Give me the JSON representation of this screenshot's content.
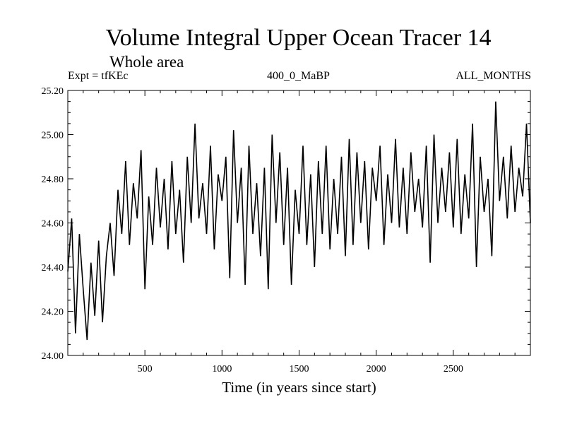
{
  "chart_data": {
    "type": "line",
    "title": "Volume Integral Upper Ocean Tracer 14",
    "subtitle": "Whole area",
    "annotations": {
      "left": "Expt = tfKEc",
      "center": "400_0_MaBP",
      "right": "ALL_MONTHS"
    },
    "xlabel": "Time (in years since start)",
    "ylabel": "",
    "xlim": [
      0,
      3000
    ],
    "ylim": [
      24.0,
      25.2
    ],
    "xticks": [
      500,
      1000,
      1500,
      2000,
      2500
    ],
    "xtick_labels": [
      "500",
      "1000",
      "1500",
      "2000",
      "2500"
    ],
    "yticks": [
      24.0,
      24.2,
      24.4,
      24.6,
      24.8,
      25.0,
      25.2
    ],
    "ytick_labels": [
      "24.00",
      "24.20",
      "24.40",
      "24.60",
      "24.80",
      "25.00",
      "25.20"
    ],
    "grid": false,
    "legend": "none",
    "line_color": "#000000",
    "series": [
      {
        "x": [
          0,
          25,
          50,
          75,
          100,
          125,
          150,
          175,
          200,
          225,
          250,
          275,
          300,
          325,
          350,
          375,
          400,
          425,
          450,
          475,
          500,
          525,
          550,
          575,
          600,
          625,
          650,
          675,
          700,
          725,
          750,
          775,
          800,
          825,
          850,
          875,
          900,
          925,
          950,
          975,
          1000,
          1025,
          1050,
          1075,
          1100,
          1125,
          1150,
          1175,
          1200,
          1225,
          1250,
          1275,
          1300,
          1325,
          1350,
          1375,
          1400,
          1425,
          1450,
          1475,
          1500,
          1525,
          1550,
          1575,
          1600,
          1625,
          1650,
          1675,
          1700,
          1725,
          1750,
          1775,
          1800,
          1825,
          1850,
          1875,
          1900,
          1925,
          1950,
          1975,
          2000,
          2025,
          2050,
          2075,
          2100,
          2125,
          2150,
          2175,
          2200,
          2225,
          2250,
          2275,
          2300,
          2325,
          2350,
          2375,
          2400,
          2425,
          2450,
          2475,
          2500,
          2525,
          2550,
          2575,
          2600,
          2625,
          2650,
          2675,
          2700,
          2725,
          2750,
          2775,
          2800,
          2825,
          2850,
          2875,
          2900,
          2925,
          2950,
          2975,
          3000
        ],
        "y": [
          24.38,
          24.62,
          24.1,
          24.55,
          24.3,
          24.07,
          24.42,
          24.18,
          24.52,
          24.15,
          24.45,
          24.6,
          24.36,
          24.75,
          24.55,
          24.88,
          24.5,
          24.78,
          24.62,
          24.93,
          24.3,
          24.72,
          24.5,
          24.85,
          24.58,
          24.8,
          24.48,
          24.88,
          24.55,
          24.75,
          24.42,
          24.9,
          24.6,
          25.05,
          24.62,
          24.78,
          24.55,
          24.95,
          24.48,
          24.82,
          24.7,
          24.9,
          24.35,
          25.02,
          24.6,
          24.85,
          24.32,
          24.95,
          24.55,
          24.78,
          24.45,
          24.85,
          24.3,
          25.0,
          24.6,
          24.92,
          24.5,
          24.85,
          24.32,
          24.75,
          24.55,
          24.95,
          24.5,
          24.82,
          24.4,
          24.88,
          24.55,
          24.95,
          24.48,
          24.8,
          24.55,
          24.9,
          24.45,
          24.98,
          24.5,
          24.92,
          24.6,
          24.88,
          24.48,
          24.85,
          24.7,
          24.95,
          24.5,
          24.82,
          24.6,
          24.98,
          24.58,
          24.85,
          24.55,
          24.92,
          24.65,
          24.8,
          24.58,
          24.95,
          24.42,
          25.0,
          24.6,
          24.85,
          24.65,
          24.92,
          24.58,
          24.98,
          24.55,
          24.82,
          24.62,
          25.05,
          24.4,
          24.9,
          24.65,
          24.8,
          24.45,
          25.15,
          24.7,
          24.9,
          24.62,
          24.95,
          24.65,
          24.85,
          24.72,
          25.05,
          24.6
        ]
      }
    ]
  }
}
